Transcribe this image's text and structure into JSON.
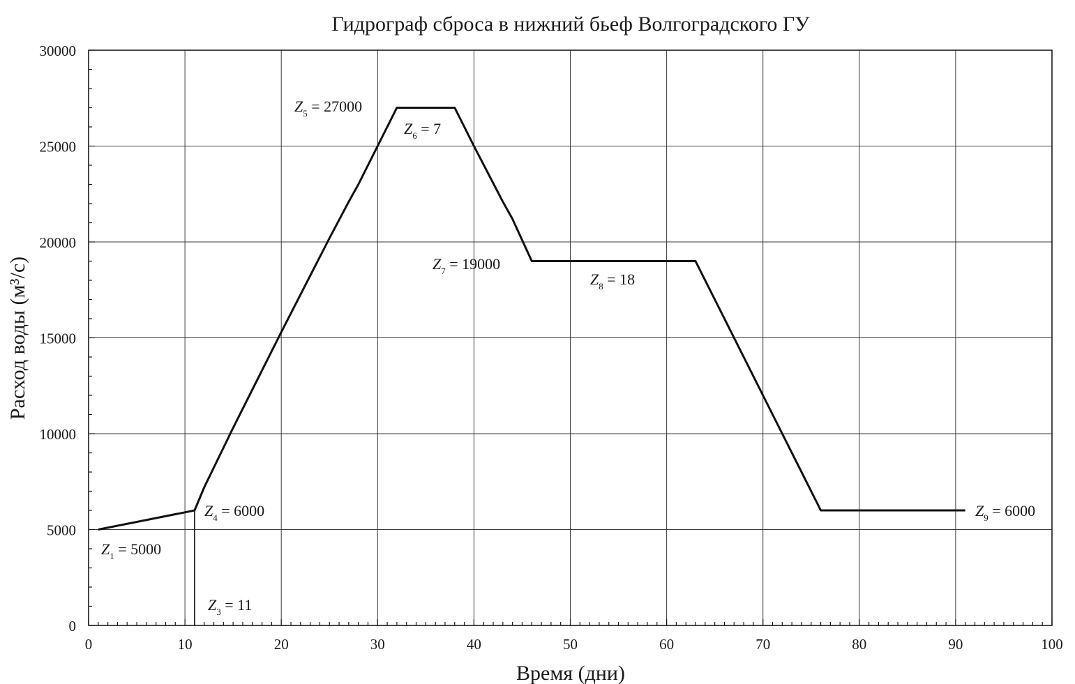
{
  "chart_data": {
    "type": "line",
    "title": "Гидрограф сброса в нижний бьеф Волгоградского ГУ",
    "xlabel": "Время (дни)",
    "ylabel": "Расход воды (м³/с)",
    "xlim": [
      0,
      100
    ],
    "ylim": [
      0,
      30000
    ],
    "x_ticks": [
      0,
      10,
      20,
      30,
      40,
      50,
      60,
      70,
      80,
      90,
      100
    ],
    "y_ticks": [
      0,
      5000,
      10000,
      15000,
      20000,
      25000,
      30000
    ],
    "grid": true,
    "series": [
      {
        "x": [
          1,
          3,
          5,
          7,
          9,
          10,
          11,
          12,
          15,
          20,
          25,
          27,
          28,
          30,
          31,
          32,
          38,
          40,
          43,
          44,
          46,
          63,
          70,
          76,
          91
        ],
        "y": [
          5000,
          5200,
          5400,
          5600,
          5800,
          5900,
          6000,
          7200,
          10300,
          15300,
          20200,
          22100,
          23000,
          25000,
          26000,
          27000,
          27000,
          25000,
          22100,
          21200,
          19000,
          19000,
          12000,
          6000,
          6000
        ]
      }
    ],
    "marker_line": {
      "x": 11,
      "y0": 0,
      "y1": 6000
    },
    "annotations": [
      {
        "var": "Z",
        "sub": "1",
        "text": " = 5000"
      },
      {
        "var": "Z",
        "sub": "3",
        "text": " = 11"
      },
      {
        "var": "Z",
        "sub": "4",
        "text": " = 6000"
      },
      {
        "var": "Z",
        "sub": "5",
        "text": " = 27000"
      },
      {
        "var": "Z",
        "sub": "6",
        "text": " = 7"
      },
      {
        "var": "Z",
        "sub": "7",
        "text": " = 19000"
      },
      {
        "var": "Z",
        "sub": "8",
        "text": " = 18"
      },
      {
        "var": "Z",
        "sub": "9",
        "text": " = 6000"
      }
    ]
  }
}
